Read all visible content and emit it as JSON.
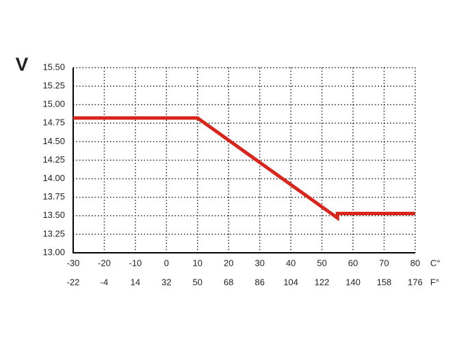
{
  "chart_data": {
    "type": "line",
    "y_label": "V",
    "x_unit": "C°",
    "x2_unit": "F°",
    "x": [
      -30,
      10,
      55,
      55,
      80
    ],
    "values": [
      14.82,
      14.82,
      13.47,
      13.53,
      13.53
    ],
    "color": "#d9261c",
    "xlim": [
      -30,
      80
    ],
    "xticks": [
      -30,
      -20,
      -10,
      0,
      10,
      20,
      30,
      40,
      50,
      60,
      70,
      80
    ],
    "x2ticks": [
      -22,
      -4,
      14,
      32,
      50,
      68,
      86,
      104,
      122,
      140,
      158,
      176
    ],
    "ylim": [
      13,
      15.5
    ],
    "yticks": [
      {
        "value": 13,
        "label": "13.00"
      },
      {
        "value": 13.25,
        "label": "13.25"
      },
      {
        "value": 13.5,
        "label": "13.50"
      },
      {
        "value": 13.75,
        "label": "13.75"
      },
      {
        "value": 14,
        "label": "14.00"
      },
      {
        "value": 14.25,
        "label": "14.25"
      },
      {
        "value": 14.5,
        "label": "14.50"
      },
      {
        "value": 14.75,
        "label": "14.75"
      },
      {
        "value": 15,
        "label": "15.00"
      },
      {
        "value": 15.25,
        "label": "15.25"
      },
      {
        "value": 15.5,
        "label": "15.50"
      }
    ],
    "grid": true
  }
}
